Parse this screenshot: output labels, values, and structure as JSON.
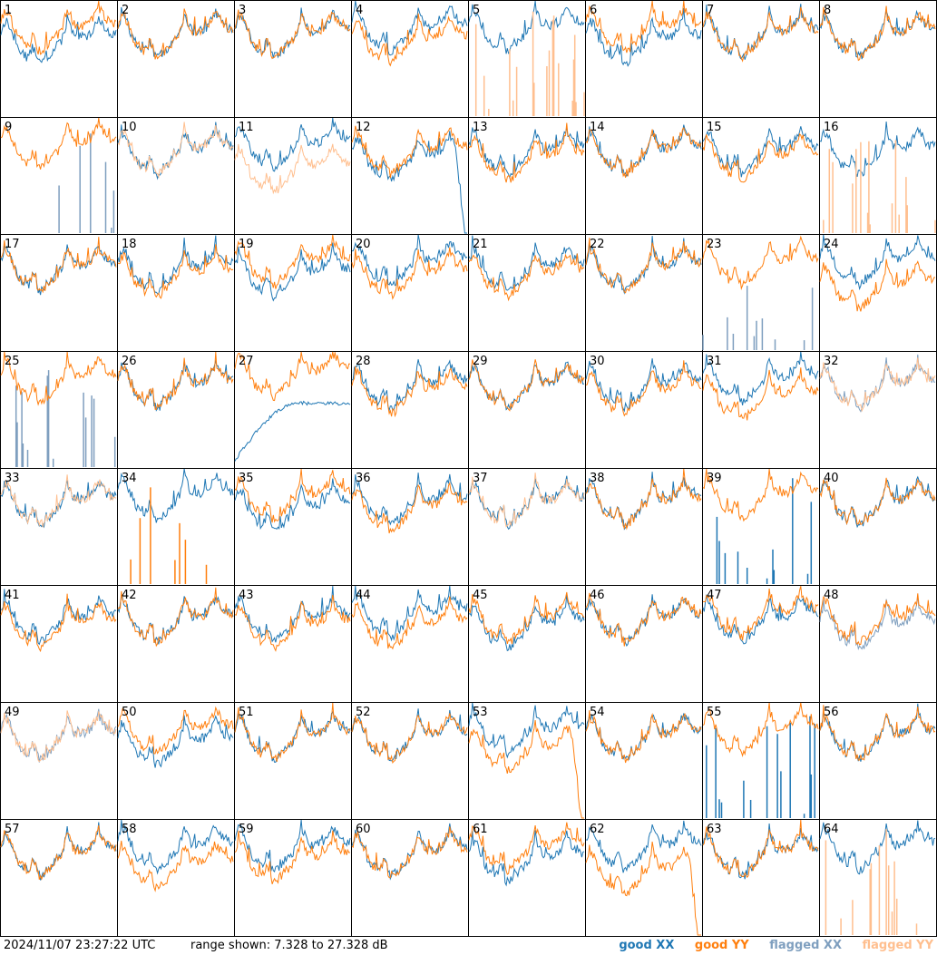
{
  "chart_data": {
    "type": "line",
    "grid_rows": 8,
    "grid_cols": 8,
    "ylim": [
      7.328,
      27.328
    ],
    "units": "dB",
    "panels": [
      {
        "label": "1",
        "flag": "none",
        "shape": "std",
        "xx": -1,
        "yy": 1
      },
      {
        "label": "2",
        "flag": "none",
        "shape": "std",
        "xx": 0,
        "yy": 0
      },
      {
        "label": "3",
        "flag": "none",
        "shape": "std",
        "xx": 0,
        "yy": 0
      },
      {
        "label": "4",
        "flag": "none",
        "shape": "std",
        "xx": 1,
        "yy": -1
      },
      {
        "label": "5",
        "flag": "yy_spikes",
        "shape": "std",
        "xx": 1,
        "yy": 0
      },
      {
        "label": "6",
        "flag": "none",
        "shape": "std",
        "xx": -1,
        "yy": 1
      },
      {
        "label": "7",
        "flag": "none",
        "shape": "std",
        "xx": 0,
        "yy": 0
      },
      {
        "label": "8",
        "flag": "none",
        "shape": "std",
        "xx": 0,
        "yy": 0
      },
      {
        "label": "9",
        "flag": "xx_spikes",
        "shape": "std",
        "xx": 0,
        "yy": 1
      },
      {
        "label": "10",
        "flag": "yy_faded",
        "shape": "std",
        "xx": 0,
        "yy": 0
      },
      {
        "label": "11",
        "flag": "yy_faded",
        "shape": "std",
        "xx": 1,
        "yy": -3
      },
      {
        "label": "12",
        "flag": "none",
        "shape": "xx_droop",
        "xx": -1,
        "yy": 0
      },
      {
        "label": "13",
        "flag": "none",
        "shape": "std",
        "xx": 0,
        "yy": -1
      },
      {
        "label": "14",
        "flag": "none",
        "shape": "std",
        "xx": 0,
        "yy": 0
      },
      {
        "label": "15",
        "flag": "none",
        "shape": "std",
        "xx": 0,
        "yy": -1
      },
      {
        "label": "16",
        "flag": "yy_spikes",
        "shape": "std",
        "xx": 0,
        "yy": 0
      },
      {
        "label": "17",
        "flag": "none",
        "shape": "std",
        "xx": 0,
        "yy": 0
      },
      {
        "label": "18",
        "flag": "none",
        "shape": "std",
        "xx": 0,
        "yy": -1
      },
      {
        "label": "19",
        "flag": "none",
        "shape": "std",
        "xx": -1,
        "yy": 1
      },
      {
        "label": "20",
        "flag": "none",
        "shape": "std",
        "xx": 1,
        "yy": -1
      },
      {
        "label": "21",
        "flag": "none",
        "shape": "std",
        "xx": 0,
        "yy": -1
      },
      {
        "label": "22",
        "flag": "none",
        "shape": "std",
        "xx": 0,
        "yy": 0
      },
      {
        "label": "23",
        "flag": "xx_spikes",
        "shape": "std",
        "xx": 0,
        "yy": 1
      },
      {
        "label": "24",
        "flag": "none",
        "shape": "std",
        "xx": 1,
        "yy": -3
      },
      {
        "label": "25",
        "flag": "xx_spikes",
        "shape": "std",
        "xx": 0,
        "yy": 1
      },
      {
        "label": "26",
        "flag": "none",
        "shape": "std",
        "xx": 0,
        "yy": 0
      },
      {
        "label": "27",
        "flag": "none",
        "shape": "xx_bump",
        "xx": -1,
        "yy": 2
      },
      {
        "label": "28",
        "flag": "none",
        "shape": "std",
        "xx": 0,
        "yy": -1
      },
      {
        "label": "29",
        "flag": "none",
        "shape": "std",
        "xx": 0,
        "yy": 0
      },
      {
        "label": "30",
        "flag": "none",
        "shape": "std",
        "xx": 0,
        "yy": -1
      },
      {
        "label": "31",
        "flag": "none",
        "shape": "std",
        "xx": 1,
        "yy": -2
      },
      {
        "label": "32",
        "flag": "both_flagged",
        "shape": "std",
        "xx": 0,
        "yy": 0
      },
      {
        "label": "33",
        "flag": "yy_faded",
        "shape": "std",
        "xx": 0,
        "yy": 0
      },
      {
        "label": "34",
        "flag": "yy_spikes_bright",
        "shape": "std",
        "xx": 1,
        "yy": 0
      },
      {
        "label": "35",
        "flag": "none",
        "shape": "std",
        "xx": -1,
        "yy": 1
      },
      {
        "label": "36",
        "flag": "none",
        "shape": "std",
        "xx": 0,
        "yy": -1
      },
      {
        "label": "37",
        "flag": "yy_faded",
        "shape": "std",
        "xx": 0,
        "yy": 0
      },
      {
        "label": "38",
        "flag": "none",
        "shape": "std",
        "xx": 0,
        "yy": 0
      },
      {
        "label": "39",
        "flag": "xx_spikes_bright",
        "shape": "std",
        "xx": 0,
        "yy": 1
      },
      {
        "label": "40",
        "flag": "none",
        "shape": "std",
        "xx": 0,
        "yy": 0
      },
      {
        "label": "41",
        "flag": "none",
        "shape": "std",
        "xx": 0,
        "yy": -1
      },
      {
        "label": "42",
        "flag": "none",
        "shape": "std",
        "xx": 0,
        "yy": 0
      },
      {
        "label": "43",
        "flag": "none",
        "shape": "std",
        "xx": 0,
        "yy": -1
      },
      {
        "label": "44",
        "flag": "none",
        "shape": "std",
        "xx": 1,
        "yy": -1
      },
      {
        "label": "45",
        "flag": "none",
        "shape": "std",
        "xx": -1,
        "yy": 0
      },
      {
        "label": "46",
        "flag": "none",
        "shape": "std",
        "xx": 0,
        "yy": 0
      },
      {
        "label": "47",
        "flag": "none",
        "shape": "std",
        "xx": 0,
        "yy": 1
      },
      {
        "label": "48",
        "flag": "xx_faded",
        "shape": "std",
        "xx": -1,
        "yy": 0
      },
      {
        "label": "49",
        "flag": "both_flagged",
        "shape": "std",
        "xx": 0,
        "yy": 0
      },
      {
        "label": "50",
        "flag": "none",
        "shape": "std",
        "xx": -1,
        "yy": 1
      },
      {
        "label": "51",
        "flag": "none",
        "shape": "std",
        "xx": 0,
        "yy": 0
      },
      {
        "label": "52",
        "flag": "none",
        "shape": "std",
        "xx": 0,
        "yy": 0
      },
      {
        "label": "53",
        "flag": "none",
        "shape": "yy_droop",
        "xx": 1,
        "yy": -2
      },
      {
        "label": "54",
        "flag": "none",
        "shape": "std",
        "xx": 0,
        "yy": 0
      },
      {
        "label": "55",
        "flag": "xx_spikes_bright",
        "shape": "std",
        "xx": 0,
        "yy": 1
      },
      {
        "label": "56",
        "flag": "none",
        "shape": "std",
        "xx": 0,
        "yy": 0
      },
      {
        "label": "57",
        "flag": "none",
        "shape": "std",
        "xx": 0,
        "yy": 0
      },
      {
        "label": "58",
        "flag": "none",
        "shape": "std",
        "xx": 1,
        "yy": -2
      },
      {
        "label": "59",
        "flag": "none",
        "shape": "std",
        "xx": 1,
        "yy": -1
      },
      {
        "label": "60",
        "flag": "none",
        "shape": "std",
        "xx": 0,
        "yy": 0
      },
      {
        "label": "61",
        "flag": "none",
        "shape": "std",
        "xx": -1,
        "yy": 1
      },
      {
        "label": "62",
        "flag": "none",
        "shape": "yy_droop",
        "xx": 1,
        "yy": -3
      },
      {
        "label": "63",
        "flag": "none",
        "shape": "std",
        "xx": 0,
        "yy": 0
      },
      {
        "label": "64",
        "flag": "yy_spikes",
        "shape": "std",
        "xx": 1,
        "yy": 0
      }
    ],
    "legend": [
      {
        "label": "good XX",
        "color": "#1f77b4"
      },
      {
        "label": "good YY",
        "color": "#ff7f0e"
      },
      {
        "label": "flagged XX",
        "color": "#7f9fbf"
      },
      {
        "label": "flagged YY",
        "color": "#ffbf8f"
      }
    ]
  },
  "footer": {
    "timestamp": "2024/11/07 23:27:22 UTC",
    "range_text": "range shown: 7.328 to 27.328 dB"
  },
  "colors": {
    "good_xx": "#1f77b4",
    "good_yy": "#ff7f0e",
    "flagged_xx": "#7f9fbf",
    "flagged_yy": "#ffbf8f"
  }
}
